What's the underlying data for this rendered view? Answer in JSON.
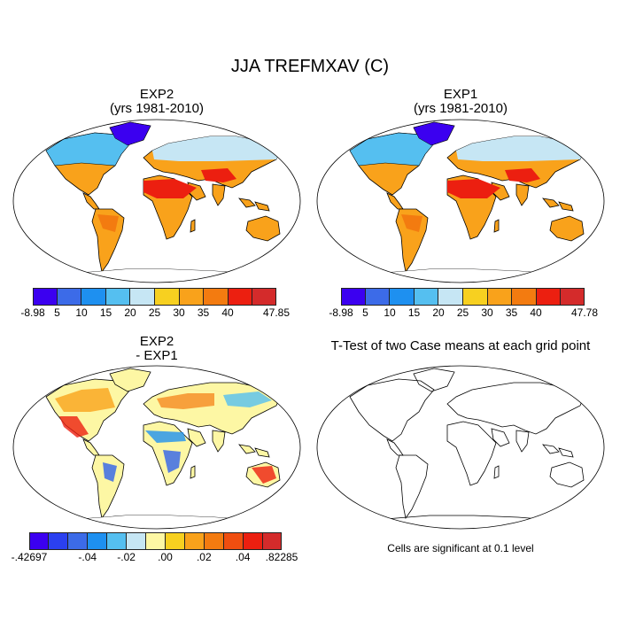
{
  "title": "JJA TREFMXAV (C)",
  "panels": {
    "top_left": {
      "line1": "EXP2",
      "line2": "(yrs 1981-2010)"
    },
    "top_right": {
      "line1": "EXP1",
      "line2": "(yrs 1981-2010)"
    },
    "bottom_left": {
      "line1": "EXP2",
      "line2": "- EXP1"
    },
    "bottom_right": {
      "title": "T-Test of two Case means at each grid point"
    }
  },
  "colorbars": {
    "top_left": {
      "colors": [
        "#3b00f0",
        "#3c6be8",
        "#1e90f0",
        "#55bff0",
        "#c6e6f4",
        "#f7d020",
        "#f9a21b",
        "#f37b10",
        "#ec1f10",
        "#d42b2b"
      ],
      "labels": [
        "-8.98",
        "5",
        "10",
        "15",
        "20",
        "25",
        "30",
        "35",
        "40",
        "47.85"
      ]
    },
    "top_right": {
      "colors": [
        "#3b00f0",
        "#3c6be8",
        "#1e90f0",
        "#55bff0",
        "#c6e6f4",
        "#f7d020",
        "#f9a21b",
        "#f37b10",
        "#ec1f10",
        "#d42b2b"
      ],
      "labels": [
        "-8.98",
        "5",
        "10",
        "15",
        "20",
        "25",
        "30",
        "35",
        "40",
        "47.78"
      ]
    },
    "bottom_left": {
      "colors": [
        "#3b00f0",
        "#2b40f0",
        "#3c6be8",
        "#1e90f0",
        "#55bff0",
        "#c6e6f4",
        "#fdf7a4",
        "#f7d020",
        "#f9a21b",
        "#f37b10",
        "#f04e10",
        "#ec1f10",
        "#d42b2b"
      ],
      "labels": [
        "-.42697",
        "-.04",
        "-.02",
        ".00",
        ".02",
        ".04",
        ".82285"
      ]
    }
  },
  "footnote": "Cells are significant at 0.1 level"
}
